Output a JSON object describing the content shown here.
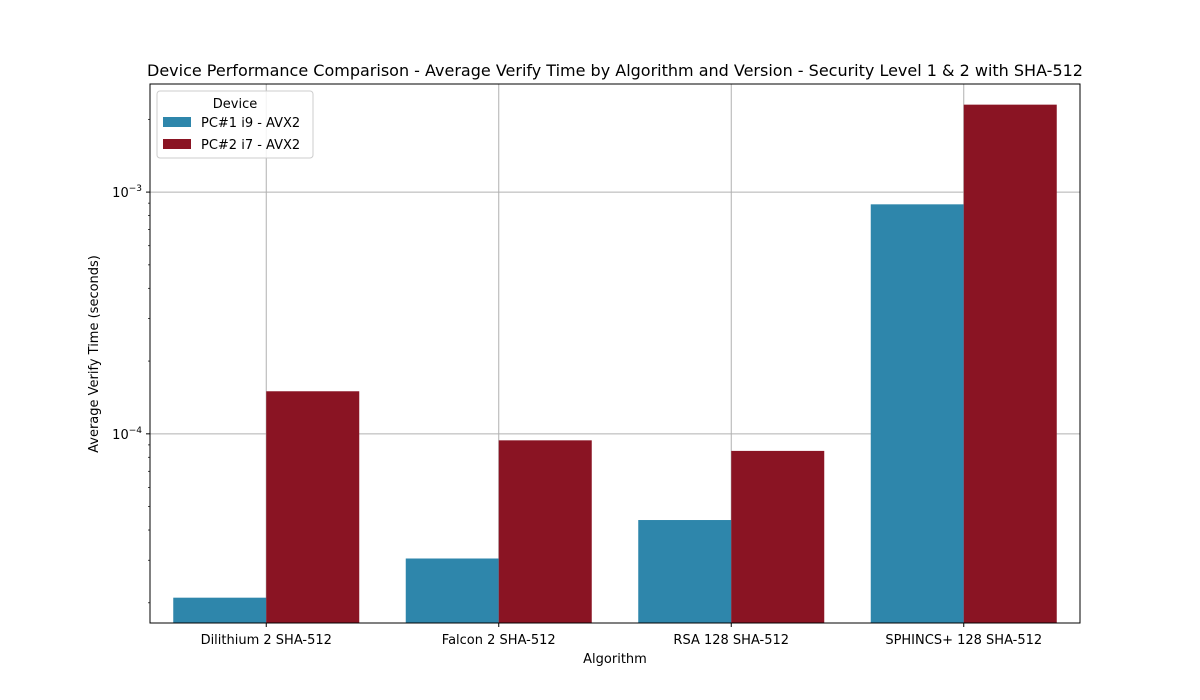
{
  "chart_data": {
    "type": "bar",
    "title": "Device Performance Comparison - Average Verify Time by Algorithm and Version - Security Level 1 & 2 with SHA-512",
    "xlabel": "Algorithm",
    "ylabel": "Average Verify Time (seconds)",
    "yscale": "log",
    "ylim": [
      1.65e-05,
      0.0028
    ],
    "ytick_values": [
      0.0001,
      0.001
    ],
    "ytick_labels": [
      {
        "base": "10",
        "exp": "−4"
      },
      {
        "base": "10",
        "exp": "−3"
      }
    ],
    "grid": true,
    "legend_title": "Device",
    "legend_position": "top-left",
    "categories": [
      "Dilithium 2 SHA-512",
      "Falcon 2 SHA-512",
      "RSA 128 SHA-512",
      "SPHINCS+ 128 SHA-512"
    ],
    "series": [
      {
        "name": "PC#1 i9 - AVX2",
        "color": "#2e86ab",
        "values": [
          2.1e-05,
          3.05e-05,
          4.4e-05,
          0.00089
        ]
      },
      {
        "name": "PC#2 i7 - AVX2",
        "color": "#8a1423",
        "values": [
          0.00015,
          9.4e-05,
          8.5e-05,
          0.0023
        ]
      }
    ]
  }
}
